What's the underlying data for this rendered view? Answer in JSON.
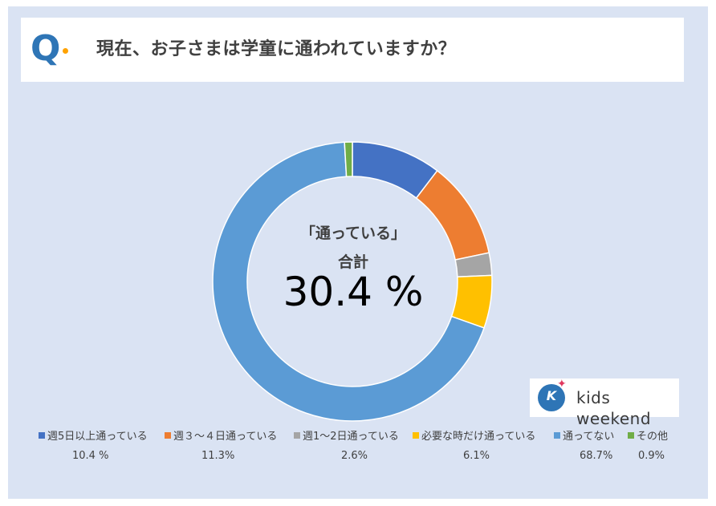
{
  "question": {
    "letter": "Q",
    "text": "現在、お子さまは学童に通われていますか？"
  },
  "center": {
    "line1": "「通っている」",
    "line2": "合計",
    "value": "30.4 %"
  },
  "logo": {
    "badge_letter": "K",
    "text": "kids weekend"
  },
  "chart_data": {
    "type": "pie",
    "donut": true,
    "categories": [
      "週5日以上通っている",
      "週３～４日通っている",
      "週1～2日通っている",
      "必要な時だけ通っている",
      "通ってない",
      "その他"
    ],
    "values": [
      10.4,
      11.3,
      2.6,
      6.1,
      68.7,
      0.9
    ],
    "value_labels": [
      "10.4 %",
      "11.3%",
      "2.6%",
      "6.1%",
      "68.7%",
      "0.9%"
    ],
    "colors": [
      "#4472c4",
      "#ed7d31",
      "#a5a5a5",
      "#ffc000",
      "#5b9bd5",
      "#70ad47"
    ],
    "legend_position": "bottom"
  }
}
